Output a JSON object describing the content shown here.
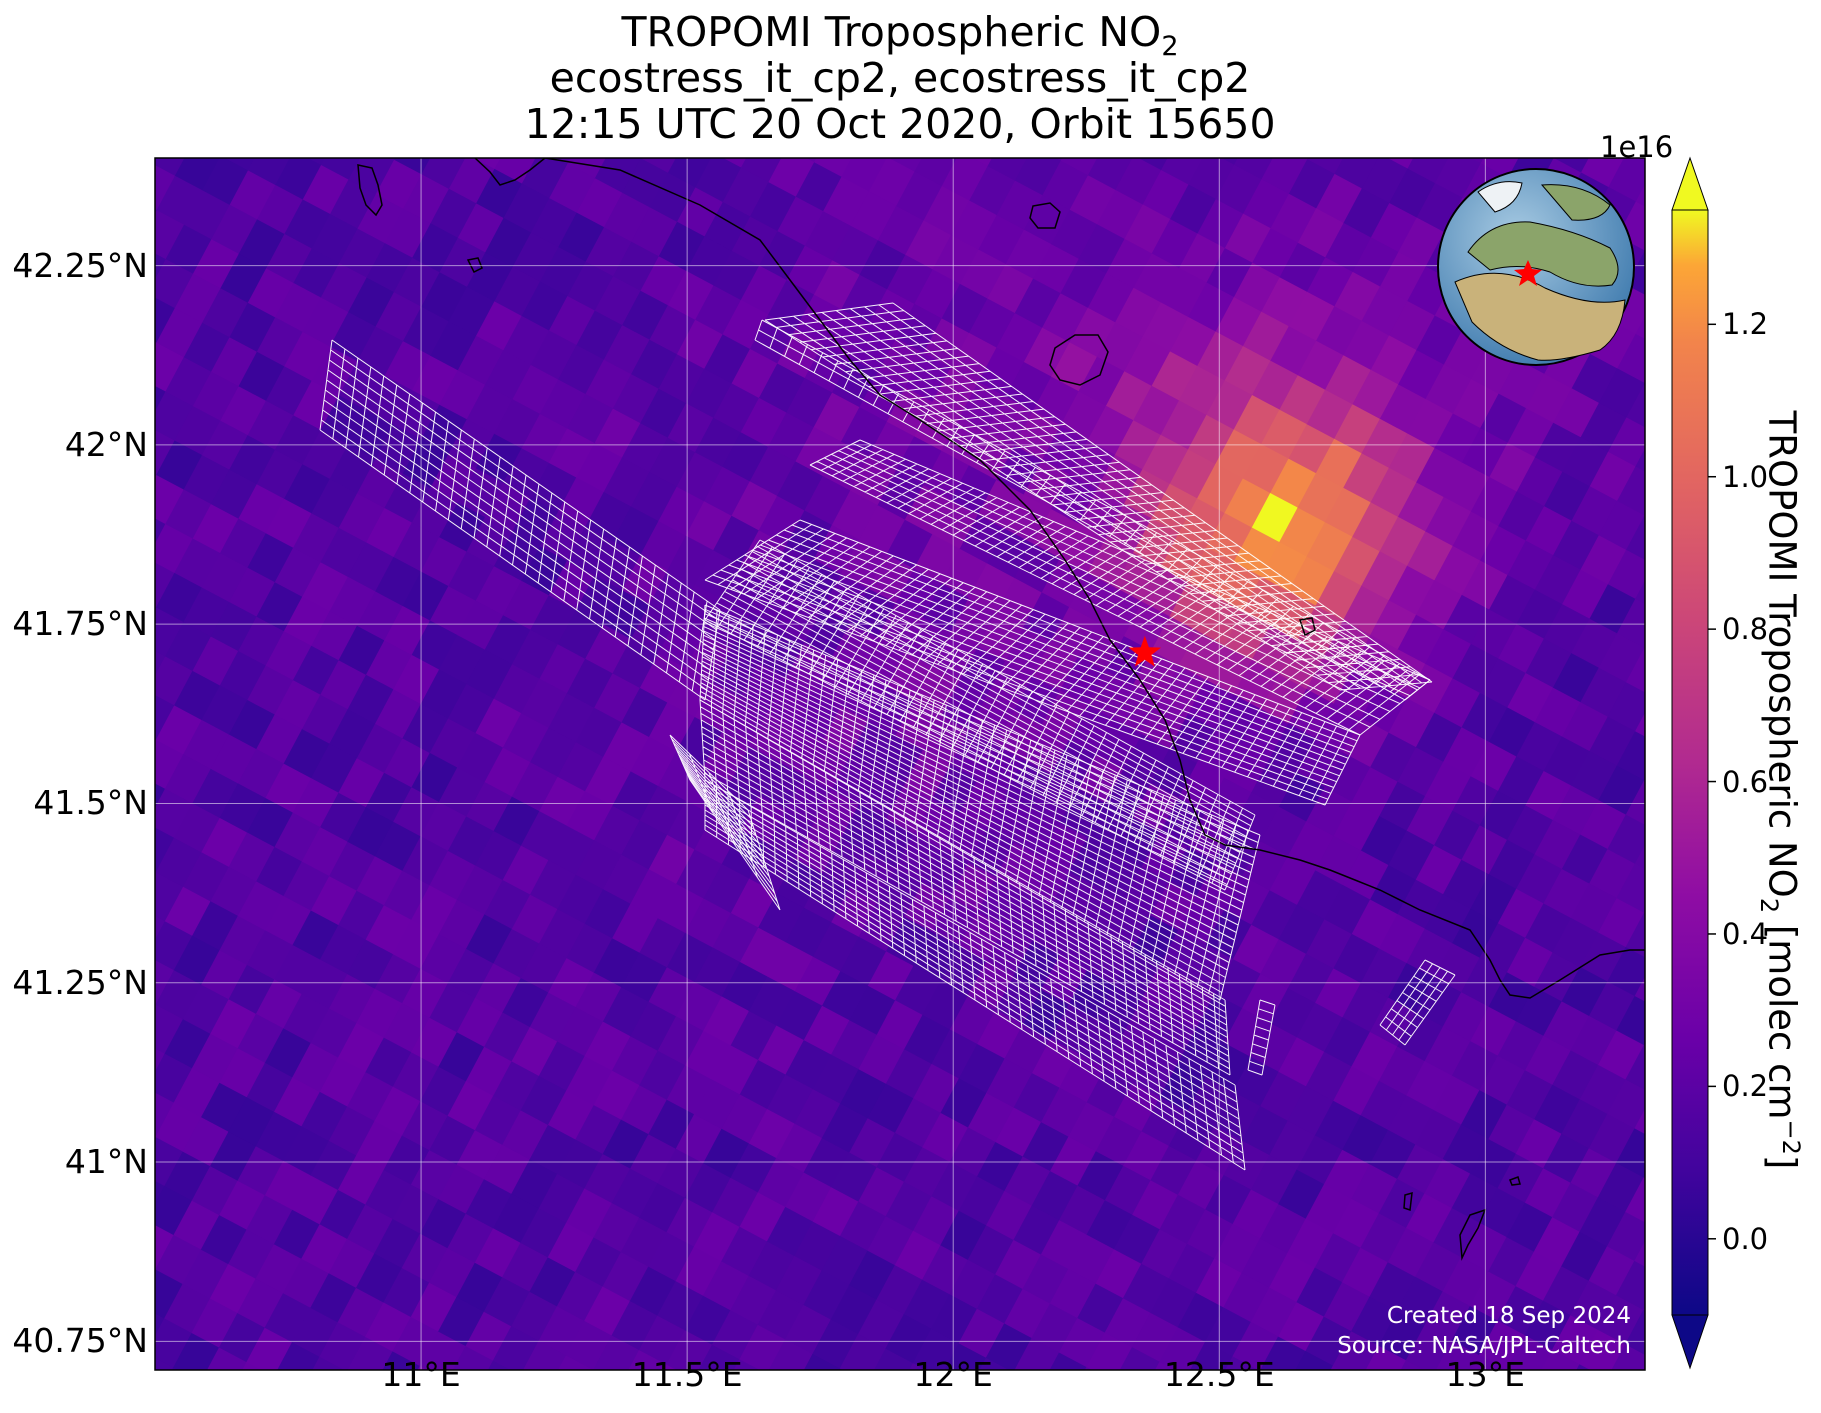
{
  "title": {
    "line1_main": "TROPOMI Tropospheric NO",
    "line1_sub": "2",
    "line2": "ecostress_it_cp2, ecostress_it_cp2",
    "line3": "12:15 UTC 20 Oct 2020, Orbit 15650"
  },
  "map": {
    "lon_range": [
      10.5,
      13.3
    ],
    "lat_range": [
      40.71,
      42.4
    ],
    "lat_ticks": [
      {
        "value": 42.25,
        "label": "42.25°N"
      },
      {
        "value": 42.0,
        "label": "42°N"
      },
      {
        "value": 41.75,
        "label": "41.75°N"
      },
      {
        "value": 41.5,
        "label": "41.5°N"
      },
      {
        "value": 41.25,
        "label": "41.25°N"
      },
      {
        "value": 41.0,
        "label": "41°N"
      },
      {
        "value": 40.75,
        "label": "40.75°N"
      }
    ],
    "lon_ticks": [
      {
        "value": 11.0,
        "label": "11°E"
      },
      {
        "value": 11.5,
        "label": "11.5°E"
      },
      {
        "value": 12.0,
        "label": "12°E"
      },
      {
        "value": 12.5,
        "label": "12.5°E"
      },
      {
        "value": 13.0,
        "label": "13°E"
      }
    ],
    "target_marker": {
      "lon": 12.36,
      "lat": 41.71,
      "color": "#ff0000"
    },
    "no2_hotspot_center": {
      "lon": 12.62,
      "lat": 41.88
    },
    "colors": {
      "gridline": "#ffffff",
      "footprint": "#ffffff",
      "coast": "#000000"
    }
  },
  "colorbar": {
    "label_main": "TROPOMI Tropospheric NO",
    "label_sub": "2",
    "label_tail": " [molec cm",
    "label_exp": "−2",
    "label_close": "]",
    "exponent": "1e16",
    "range": [
      -0.1,
      1.35
    ],
    "ticks": [
      "0.0",
      "0.2",
      "0.4",
      "0.6",
      "0.8",
      "1.0",
      "1.2"
    ],
    "tick_values": [
      0.0,
      0.2,
      0.4,
      0.6,
      0.8,
      1.0,
      1.2
    ],
    "colormap": "plasma",
    "extend": "both"
  },
  "credits": {
    "created": "Created 18 Sep 2024",
    "source": "Source: NASA/JPL-Caltech"
  }
}
